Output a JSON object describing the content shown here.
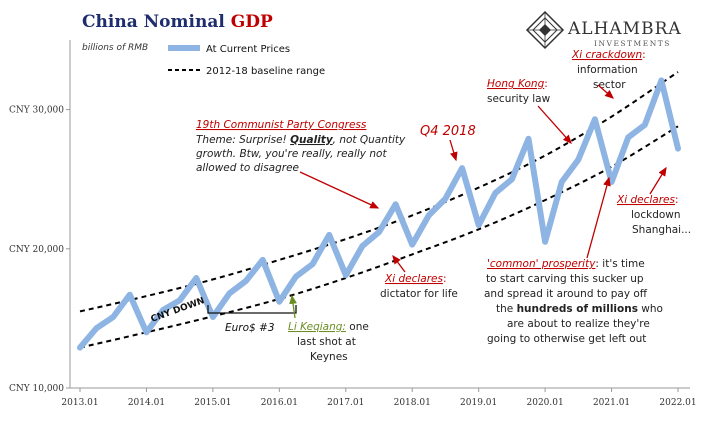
{
  "chart_data": {
    "type": "line",
    "title_part1": "China Nominal ",
    "title_part2": "GDP",
    "units_label": "billions of RMB",
    "legend": {
      "placement": "top-left",
      "entries": [
        "At Current Prices",
        "2012-18 baseline range"
      ]
    },
    "x_tick_labels": [
      "2013.01",
      "2014.01",
      "2015.01",
      "2016.01",
      "2017.01",
      "2018.01",
      "2019.01",
      "2020.01",
      "2021.01",
      "2022.01"
    ],
    "y_tick_labels": [
      "CNY 10,000",
      "CNY 20,000",
      "CNY 30,000"
    ],
    "ylim": [
      10000,
      35000
    ],
    "xlim": [
      2013.0,
      2022.0
    ],
    "grid": false,
    "colors": {
      "series": "#8db4e2",
      "band": "#000000",
      "title_blue": "#1f2d6e",
      "title_red": "#c00000",
      "annotation_red": "#c00000",
      "annotation_green": "#6b8e23"
    },
    "series": [
      {
        "name": "At Current Prices",
        "x": [
          2013.0,
          2013.25,
          2013.5,
          2013.75,
          2014.0,
          2014.25,
          2014.5,
          2014.75,
          2015.0,
          2015.25,
          2015.5,
          2015.75,
          2016.0,
          2016.25,
          2016.5,
          2016.75,
          2017.0,
          2017.25,
          2017.5,
          2017.75,
          2018.0,
          2018.25,
          2018.5,
          2018.75,
          2019.0,
          2019.25,
          2019.5,
          2019.75,
          2020.0,
          2020.25,
          2020.5,
          2020.75,
          2021.0,
          2021.25,
          2021.5,
          2021.75,
          2022.0
        ],
        "values": [
          12900,
          14300,
          15100,
          16700,
          14000,
          15600,
          16300,
          17900,
          15100,
          16800,
          17700,
          19200,
          16200,
          18000,
          18900,
          21000,
          18100,
          20200,
          21200,
          23200,
          20300,
          22400,
          23600,
          25800,
          21700,
          24000,
          25000,
          27900,
          20500,
          24800,
          26400,
          29300,
          24800,
          28000,
          28900,
          32100,
          27200
        ]
      },
      {
        "name": "2012-18 baseline range",
        "role": "upper",
        "x": [
          2013.0,
          2014.0,
          2015.0,
          2016.0,
          2017.0,
          2018.0,
          2019.0,
          2020.0,
          2021.0,
          2022.0
        ],
        "values": [
          15500,
          16600,
          17800,
          19200,
          20700,
          22400,
          24400,
          26700,
          29500,
          32700
        ]
      },
      {
        "name": "2012-18 baseline range",
        "role": "lower",
        "x": [
          2013.0,
          2014.0,
          2015.0,
          2016.0,
          2017.0,
          2018.0,
          2019.0,
          2020.0,
          2021.0,
          2022.0
        ],
        "values": [
          12900,
          14000,
          15150,
          16400,
          17900,
          19600,
          21400,
          23500,
          25900,
          28800
        ]
      }
    ],
    "annotations": {
      "party_congress_title": "19th Communist Party Congress",
      "party_congress_l1a": "Theme: Surprise! ",
      "party_congress_l1b": "Quality",
      "party_congress_l1c": ", not Quantity",
      "party_congress_l2": "growth. Btw, you're really, really not",
      "party_congress_l3": "allowed to disagree",
      "q4": "Q4 2018",
      "hong_kong_title": "Hong Kong",
      "hong_kong_colon": ":",
      "hong_kong_body": "security law",
      "xi_crackdown_title": "Xi crackdown",
      "xi_crackdown_colon": ":",
      "xi_crackdown_body1": "information",
      "xi_crackdown_body2": "sector",
      "xi_declares_dictator_title": "Xi declares",
      "xi_declares_dictator_colon": ":",
      "xi_declares_dictator_body": "dictator for life",
      "xi_declares_lockdown_title": "Xi declares",
      "xi_declares_lockdown_colon": ":",
      "xi_declares_lockdown_body1": "lockdown",
      "xi_declares_lockdown_body2": "Shanghai...",
      "common_title": "'common' prosperity",
      "common_l1": ": it's time",
      "common_l2": "to start carving this sucker up",
      "common_l3": "and spread it around to pay off",
      "common_l4a": "the ",
      "common_l4b": "hundreds of millions",
      "common_l4c": " who",
      "common_l5": "are about to realize they're",
      "common_l6": "going to otherwise get left out",
      "cny_down": "CNY DOWN",
      "euro3": "Euro$ #3",
      "li_title": "Li Keqiang:",
      "li_body1": " one",
      "li_body2": "last shot at",
      "li_body3": "Keynes"
    },
    "logo": {
      "name": "ALHAMBRA",
      "sub": "INVESTMENTS"
    }
  }
}
